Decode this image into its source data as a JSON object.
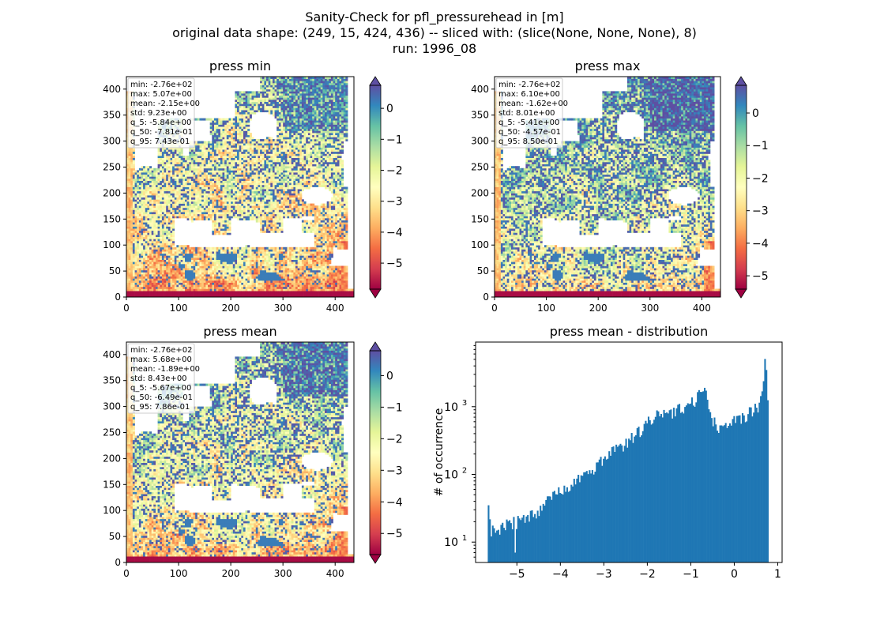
{
  "figure": {
    "title_lines": [
      "Sanity-Check for pfl_pressurehead in [m]",
      "original data shape: (249, 15, 424, 436) -- sliced with: (slice(None, None, None), 8)",
      "run: 1996_08"
    ]
  },
  "colors": {
    "colormap": "Spectral",
    "histogram_bar": "#1f77b4",
    "stats_box_border": "#cccccc"
  },
  "chart_data": [
    {
      "type": "heatmap",
      "title": "press min",
      "colormap": "Spectral",
      "extend": "both",
      "xlim": [
        0,
        436
      ],
      "ylim": [
        0,
        424
      ],
      "x_ticks": [
        0,
        100,
        200,
        300,
        400
      ],
      "y_ticks": [
        0,
        50,
        100,
        150,
        200,
        250,
        300,
        350,
        400
      ],
      "colorbar": {
        "vmin": -5.84,
        "vmax": 0.743,
        "ticks": [
          0,
          -1,
          -2,
          -3,
          -4,
          -5
        ],
        "tick_labels": [
          "0",
          "−1",
          "−2",
          "−3",
          "−4",
          "−5"
        ]
      },
      "stats": [
        "min: -2.76e+02",
        "max: 5.07e+00",
        "mean: -2.15e+00",
        "std: 9.23e+00",
        "q_5: -5.84e+00",
        "q_50: -7.81e-01",
        "q_95: 7.43e-01"
      ]
    },
    {
      "type": "heatmap",
      "title": "press max",
      "colormap": "Spectral",
      "extend": "both",
      "xlim": [
        0,
        436
      ],
      "ylim": [
        0,
        424
      ],
      "x_ticks": [
        0,
        100,
        200,
        300,
        400
      ],
      "y_ticks": [
        0,
        50,
        100,
        150,
        200,
        250,
        300,
        350,
        400
      ],
      "colorbar": {
        "vmin": -5.41,
        "vmax": 0.85,
        "ticks": [
          0,
          -1,
          -2,
          -3,
          -4,
          -5
        ],
        "tick_labels": [
          "0",
          "−1",
          "−2",
          "−3",
          "−4",
          "−5"
        ]
      },
      "stats": [
        "min: -2.76e+02",
        "max: 6.10e+00",
        "mean: -1.62e+00",
        "std: 8.01e+00",
        "q_5: -5.41e+00",
        "q_50: -4.57e-01",
        "q_95: 8.50e-01"
      ]
    },
    {
      "type": "heatmap",
      "title": "press mean",
      "colormap": "Spectral",
      "extend": "both",
      "xlim": [
        0,
        436
      ],
      "ylim": [
        0,
        424
      ],
      "x_ticks": [
        0,
        100,
        200,
        300,
        400
      ],
      "y_ticks": [
        0,
        50,
        100,
        150,
        200,
        250,
        300,
        350,
        400
      ],
      "colorbar": {
        "vmin": -5.67,
        "vmax": 0.786,
        "ticks": [
          0,
          -1,
          -2,
          -3,
          -4,
          -5
        ],
        "tick_labels": [
          "0",
          "−1",
          "−2",
          "−3",
          "−4",
          "−5"
        ]
      },
      "stats": [
        "min: -2.76e+02",
        "max: 5.68e+00",
        "mean: -1.89e+00",
        "std: 8.43e+00",
        "q_5: -5.67e+00",
        "q_50: -6.49e-01",
        "q_95: 7.86e-01"
      ]
    },
    {
      "type": "bar",
      "title": "press mean - distribution",
      "xlabel": "",
      "ylabel": "# of occurrence",
      "yscale": "log",
      "xlim": [
        -5.95,
        1.1
      ],
      "ylim": [
        5,
        9000
      ],
      "x_ticks": [
        -5,
        -4,
        -3,
        -2,
        -1,
        0,
        1
      ],
      "x_tick_labels": [
        "−5",
        "−4",
        "−3",
        "−2",
        "−1",
        "0",
        "1"
      ],
      "y_ticks": [
        10,
        100,
        1000
      ],
      "y_tick_labels": [
        "10",
        "10",
        "10"
      ],
      "y_tick_exponents": [
        "1",
        "2",
        "3"
      ],
      "bin_range": [
        -5.67,
        0.786
      ],
      "values_anchor_x": [
        -5.67,
        -5.6,
        -5.3,
        -5.0,
        -4.6,
        -4.2,
        -3.8,
        -3.4,
        -3.0,
        -2.6,
        -2.2,
        -1.9,
        -1.6,
        -1.3,
        -1.05,
        -0.85,
        -0.7,
        -0.62,
        -0.55,
        -0.45,
        -0.3,
        -0.1,
        0.1,
        0.3,
        0.45,
        0.55,
        0.62,
        0.66,
        0.69,
        0.71,
        0.74,
        0.77,
        0.786
      ],
      "values_anchor_y": [
        35,
        15,
        17,
        20,
        27,
        45,
        70,
        100,
        170,
        260,
        420,
        700,
        820,
        880,
        1050,
        1350,
        1800,
        1400,
        750,
        560,
        490,
        560,
        660,
        760,
        900,
        1050,
        1350,
        2000,
        3000,
        5300,
        2800,
        1600,
        1200
      ]
    }
  ]
}
